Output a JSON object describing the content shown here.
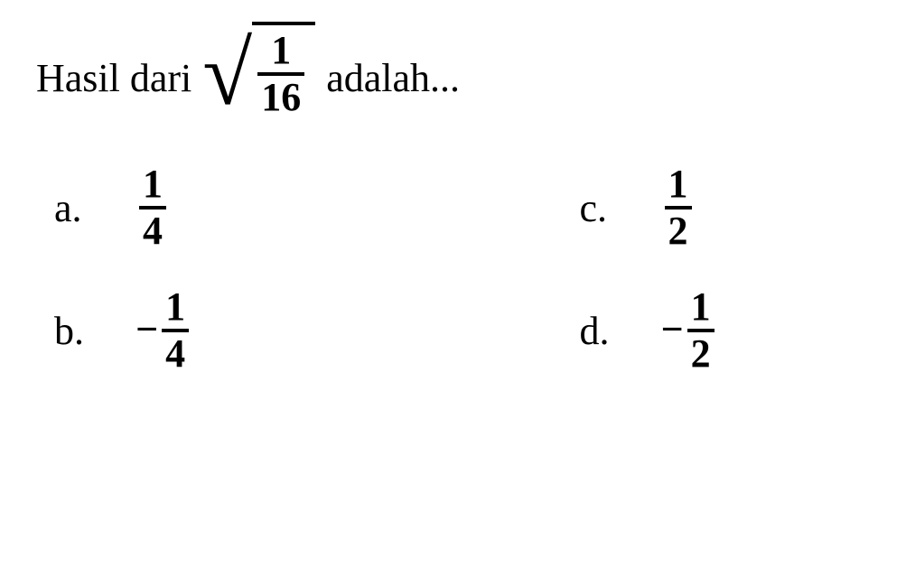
{
  "question": {
    "prefix": "Hasil dari",
    "suffix": "adalah...",
    "sqrt_fraction": {
      "numerator": "1",
      "denominator": "16"
    }
  },
  "options": {
    "a": {
      "letter": "a.",
      "sign": "",
      "numerator": "1",
      "denominator": "4"
    },
    "b": {
      "letter": "b.",
      "sign": "−",
      "numerator": "1",
      "denominator": "4"
    },
    "c": {
      "letter": "c.",
      "sign": "",
      "numerator": "1",
      "denominator": "2"
    },
    "d": {
      "letter": "d.",
      "sign": "−",
      "numerator": "1",
      "denominator": "2"
    }
  },
  "style": {
    "background_color": "#ffffff",
    "text_color": "#000000",
    "font_family": "Times New Roman, serif",
    "question_fontsize": 44,
    "fraction_fontsize": 44,
    "line_thickness": 4
  }
}
